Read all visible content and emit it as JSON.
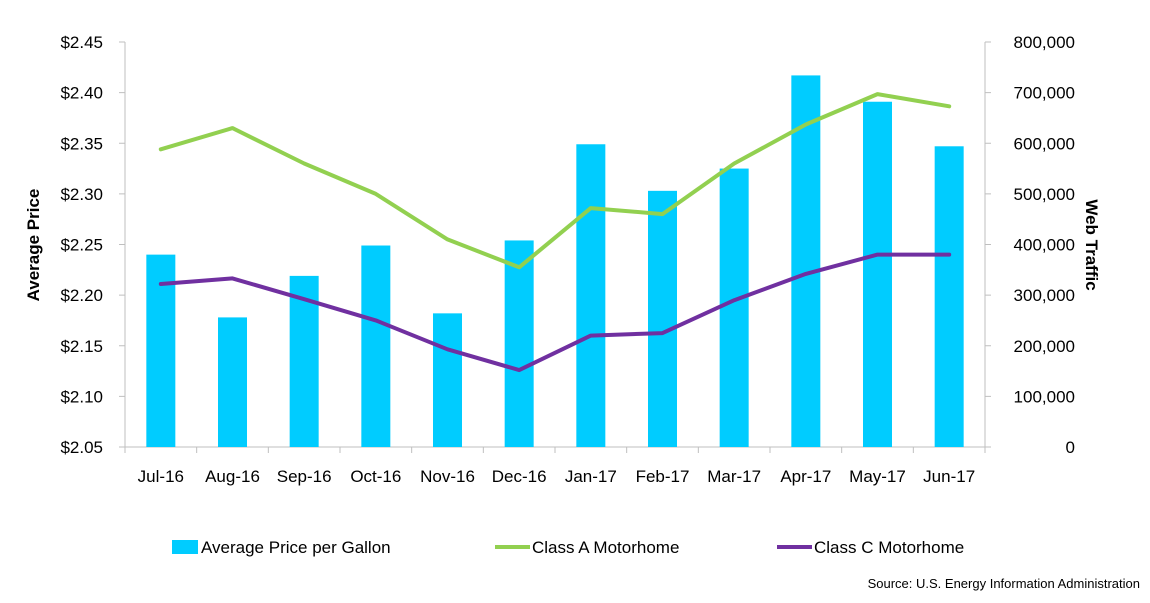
{
  "chart_data": {
    "type": "bar+line",
    "categories": [
      "Jul-16",
      "Aug-16",
      "Sep-16",
      "Oct-16",
      "Nov-16",
      "Dec-16",
      "Jan-17",
      "Feb-17",
      "Mar-17",
      "Apr-17",
      "May-17",
      "Jun-17"
    ],
    "bars": {
      "name": "Average Price per Gallon",
      "axis": "left",
      "color": "#00CCFF",
      "values": [
        2.24,
        2.178,
        2.219,
        2.249,
        2.182,
        2.254,
        2.349,
        2.303,
        2.325,
        2.417,
        2.391,
        2.347
      ]
    },
    "lines": [
      {
        "name": "Class A Motorhome",
        "axis": "right",
        "color": "#92D050",
        "values": [
          588000,
          630000,
          560000,
          500000,
          410000,
          355000,
          472000,
          460000,
          560000,
          637000,
          697000,
          673000
        ]
      },
      {
        "name": "Class C Motorhome",
        "axis": "right",
        "color": "#7030A0",
        "values": [
          322000,
          333000,
          292000,
          250000,
          193000,
          152000,
          220000,
          225000,
          290000,
          342000,
          380000,
          380000
        ]
      }
    ],
    "yleft": {
      "label": "Average Price",
      "min": 2.05,
      "max": 2.45,
      "step": 0.05,
      "ticks": [
        "$2.05",
        "$2.10",
        "$2.15",
        "$2.20",
        "$2.25",
        "$2.30",
        "$2.35",
        "$2.40",
        "$2.45"
      ]
    },
    "yright": {
      "label": "Web Traffic",
      "min": 0,
      "max": 800000,
      "step": 100000,
      "ticks": [
        "0",
        "100,000",
        "200,000",
        "300,000",
        "400,000",
        "500,000",
        "600,000",
        "700,000",
        "800,000"
      ]
    },
    "grid": false,
    "legend_position": "bottom",
    "source": "Source: U.S. Energy Information Administration"
  }
}
